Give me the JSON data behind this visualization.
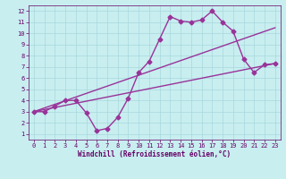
{
  "xlabel": "Windchill (Refroidissement éolien,°C)",
  "bg_color": "#c8eef0",
  "grid_color": "#a8d8dc",
  "line_color": "#993399",
  "xlim": [
    -0.5,
    23.5
  ],
  "ylim": [
    0.5,
    12.5
  ],
  "xticks": [
    0,
    1,
    2,
    3,
    4,
    5,
    6,
    7,
    8,
    9,
    10,
    11,
    12,
    13,
    14,
    15,
    16,
    17,
    18,
    19,
    20,
    21,
    22,
    23
  ],
  "yticks": [
    1,
    2,
    3,
    4,
    5,
    6,
    7,
    8,
    9,
    10,
    11,
    12
  ],
  "line1_x": [
    0,
    1,
    2,
    3,
    4,
    5,
    6,
    7,
    8,
    9,
    10,
    11,
    12,
    13,
    14,
    15,
    16,
    17,
    18,
    19,
    20,
    21,
    22,
    23
  ],
  "line1_y": [
    3.0,
    3.0,
    3.5,
    4.0,
    4.0,
    2.9,
    1.3,
    1.5,
    2.5,
    4.2,
    6.5,
    7.5,
    9.5,
    11.5,
    11.1,
    11.0,
    11.2,
    12.0,
    11.0,
    10.2,
    7.7,
    6.5,
    7.2,
    7.3
  ],
  "line2_x": [
    0,
    23
  ],
  "line2_y": [
    3.0,
    7.3
  ],
  "line3_x": [
    0,
    23
  ],
  "line3_y": [
    3.0,
    10.5
  ],
  "marker": "D",
  "markersize": 2.5,
  "linewidth": 1.0,
  "tick_fontsize": 5.0,
  "xlabel_fontsize": 5.5
}
